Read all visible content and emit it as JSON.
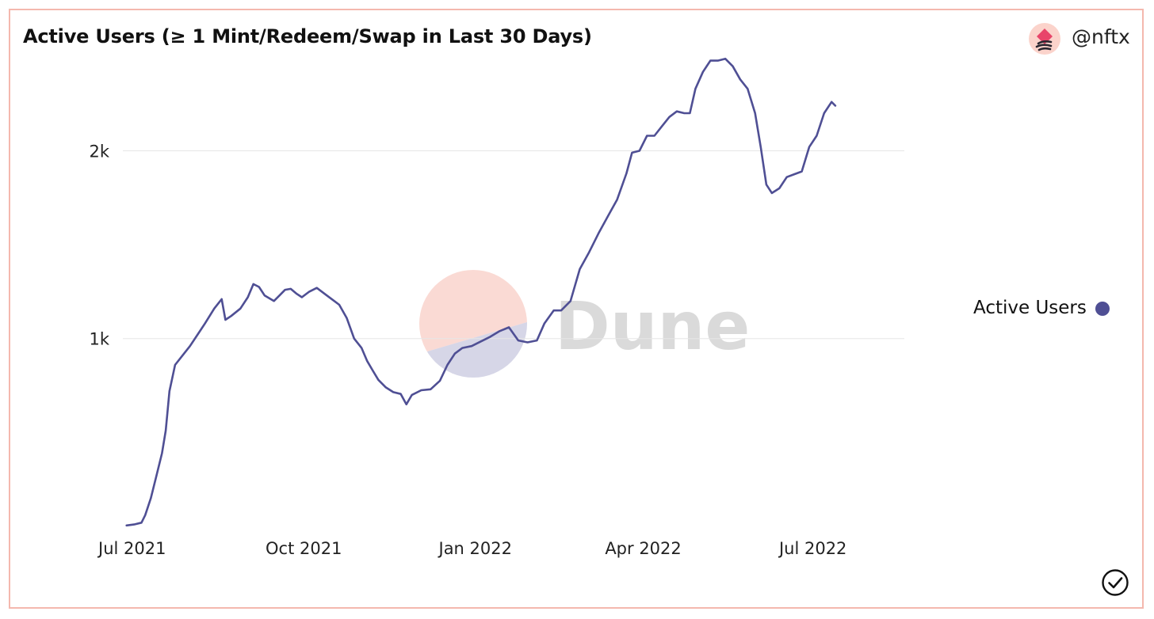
{
  "header": {
    "title": "Active Users (≥ 1 Mint/Redeem/Swap in Last 30 Days)",
    "handle": "@nftx",
    "avatar_icon": "dune-logo-icon"
  },
  "watermark": {
    "text": "Dune"
  },
  "legend": {
    "label": "Active Users"
  },
  "status": {
    "icon": "checkmark-circle-icon"
  },
  "colors": {
    "line": "#4f4f94",
    "frame_border": "#f4b8ae",
    "watermark_top": "#f9d4cc",
    "watermark_bottom": "#cfcfe3",
    "watermark_text": "#d6d6d6"
  },
  "chart_data": {
    "type": "line",
    "x_type": "date",
    "y_ticks": [
      "1k",
      "2k"
    ],
    "y_tick_values": [
      1000,
      2000
    ],
    "ylim": [
      0,
      2550
    ],
    "xlim": [
      "2021-06-26",
      "2022-08-19"
    ],
    "x_ticks": [
      {
        "date": "2021-07-01",
        "label": "Jul 2021"
      },
      {
        "date": "2021-10-01",
        "label": "Oct 2021"
      },
      {
        "date": "2022-01-01",
        "label": "Jan 2022"
      },
      {
        "date": "2022-04-01",
        "label": "Apr 2022"
      },
      {
        "date": "2022-07-01",
        "label": "Jul 2022"
      }
    ],
    "grid": true,
    "legend_position": "right",
    "series": [
      {
        "name": "Active Users",
        "points": [
          [
            "2021-06-28",
            5
          ],
          [
            "2021-07-02",
            10
          ],
          [
            "2021-07-06",
            20
          ],
          [
            "2021-07-08",
            60
          ],
          [
            "2021-07-11",
            150
          ],
          [
            "2021-07-14",
            270
          ],
          [
            "2021-07-17",
            390
          ],
          [
            "2021-07-19",
            510
          ],
          [
            "2021-07-21",
            720
          ],
          [
            "2021-07-24",
            860
          ],
          [
            "2021-07-28",
            910
          ],
          [
            "2021-08-01",
            960
          ],
          [
            "2021-08-05",
            1020
          ],
          [
            "2021-08-09",
            1080
          ],
          [
            "2021-08-14",
            1160
          ],
          [
            "2021-08-18",
            1210
          ],
          [
            "2021-08-20",
            1100
          ],
          [
            "2021-08-23",
            1120
          ],
          [
            "2021-08-28",
            1160
          ],
          [
            "2021-09-01",
            1220
          ],
          [
            "2021-09-04",
            1290
          ],
          [
            "2021-09-07",
            1275
          ],
          [
            "2021-09-10",
            1230
          ],
          [
            "2021-09-15",
            1200
          ],
          [
            "2021-09-18",
            1230
          ],
          [
            "2021-09-21",
            1260
          ],
          [
            "2021-09-24",
            1265
          ],
          [
            "2021-09-27",
            1240
          ],
          [
            "2021-09-30",
            1220
          ],
          [
            "2021-10-04",
            1250
          ],
          [
            "2021-10-08",
            1270
          ],
          [
            "2021-10-12",
            1240
          ],
          [
            "2021-10-16",
            1210
          ],
          [
            "2021-10-20",
            1180
          ],
          [
            "2021-10-24",
            1110
          ],
          [
            "2021-10-28",
            1000
          ],
          [
            "2021-11-01",
            950
          ],
          [
            "2021-11-04",
            880
          ],
          [
            "2021-11-07",
            830
          ],
          [
            "2021-11-10",
            780
          ],
          [
            "2021-11-14",
            740
          ],
          [
            "2021-11-18",
            715
          ],
          [
            "2021-11-22",
            705
          ],
          [
            "2021-11-25",
            650
          ],
          [
            "2021-11-28",
            700
          ],
          [
            "2021-12-03",
            725
          ],
          [
            "2021-12-08",
            730
          ],
          [
            "2021-12-13",
            775
          ],
          [
            "2021-12-17",
            860
          ],
          [
            "2021-12-21",
            920
          ],
          [
            "2021-12-25",
            950
          ],
          [
            "2021-12-30",
            960
          ],
          [
            "2022-01-04",
            985
          ],
          [
            "2022-01-09",
            1010
          ],
          [
            "2022-01-14",
            1040
          ],
          [
            "2022-01-19",
            1060
          ],
          [
            "2022-01-24",
            990
          ],
          [
            "2022-01-29",
            980
          ],
          [
            "2022-02-03",
            990
          ],
          [
            "2022-02-07",
            1080
          ],
          [
            "2022-02-12",
            1150
          ],
          [
            "2022-02-16",
            1150
          ],
          [
            "2022-02-21",
            1200
          ],
          [
            "2022-02-26",
            1370
          ],
          [
            "2022-03-03",
            1460
          ],
          [
            "2022-03-08",
            1560
          ],
          [
            "2022-03-13",
            1650
          ],
          [
            "2022-03-18",
            1740
          ],
          [
            "2022-03-23",
            1880
          ],
          [
            "2022-03-26",
            1990
          ],
          [
            "2022-03-30",
            2000
          ],
          [
            "2022-04-03",
            2080
          ],
          [
            "2022-04-07",
            2080
          ],
          [
            "2022-04-11",
            2130
          ],
          [
            "2022-04-15",
            2180
          ],
          [
            "2022-04-19",
            2210
          ],
          [
            "2022-04-23",
            2200
          ],
          [
            "2022-04-26",
            2200
          ],
          [
            "2022-04-29",
            2330
          ],
          [
            "2022-05-03",
            2420
          ],
          [
            "2022-05-07",
            2480
          ],
          [
            "2022-05-11",
            2480
          ],
          [
            "2022-05-15",
            2490
          ],
          [
            "2022-05-19",
            2450
          ],
          [
            "2022-05-23",
            2380
          ],
          [
            "2022-05-27",
            2330
          ],
          [
            "2022-05-31",
            2200
          ],
          [
            "2022-06-03",
            2020
          ],
          [
            "2022-06-06",
            1820
          ],
          [
            "2022-06-09",
            1775
          ],
          [
            "2022-06-13",
            1800
          ],
          [
            "2022-06-17",
            1860
          ],
          [
            "2022-06-21",
            1875
          ],
          [
            "2022-06-25",
            1890
          ],
          [
            "2022-06-29",
            2020
          ],
          [
            "2022-07-03",
            2080
          ],
          [
            "2022-07-07",
            2200
          ],
          [
            "2022-07-11",
            2260
          ],
          [
            "2022-07-13",
            2240
          ]
        ]
      }
    ]
  }
}
